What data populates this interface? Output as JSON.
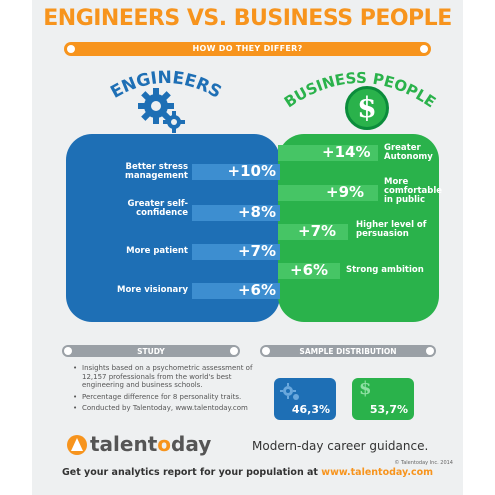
{
  "title": "ENGINEERS VS. BUSINESS PEOPLE",
  "subtitle": "HOW DO THEY DIFFER?",
  "engineers": {
    "heading": "ENGINEERS",
    "traits": [
      {
        "label": "Better stress management",
        "value": "+10%"
      },
      {
        "label": "Greater self-confidence",
        "value": "+8%"
      },
      {
        "label": "More patient",
        "value": "+7%"
      },
      {
        "label": "More visionary",
        "value": "+6%"
      }
    ]
  },
  "business": {
    "heading": "BUSINESS PEOPLE",
    "traits": [
      {
        "label": "Greater Autonomy",
        "value": "+14%"
      },
      {
        "label": "More comfortable in public",
        "value": "+9%"
      },
      {
        "label": "Higher level of persuasion",
        "value": "+7%"
      },
      {
        "label": "Strong ambition",
        "value": "+6%"
      }
    ]
  },
  "study": {
    "heading": "STUDY",
    "items": [
      "Insights based on a psychometric assessment of 12,157 professionals from the world's best engineering and business schools.",
      "Percentage difference for 8 personality traits.",
      "Conducted by Talentoday, www.talentoday.com"
    ]
  },
  "sample": {
    "heading": "SAMPLE DISTRIBUTION",
    "engineers_pct": "46,3%",
    "business_pct": "53,7%",
    "engineers_color": "#1e6fb5",
    "business_color": "#2ab24b"
  },
  "brand": {
    "logo_pre": "talent",
    "logo_o": "o",
    "logo_post": "day",
    "tagline": "Modern-day career guidance.",
    "copyright": "© Talentoday Inc. 2014"
  },
  "footer": {
    "text": "Get your analytics report for your population at ",
    "url": "www.talentoday.com"
  },
  "colors": {
    "accent": "#f7941d",
    "engineers": "#1e6fb5",
    "business": "#2ab24b",
    "bars": "#9aa0a6"
  }
}
